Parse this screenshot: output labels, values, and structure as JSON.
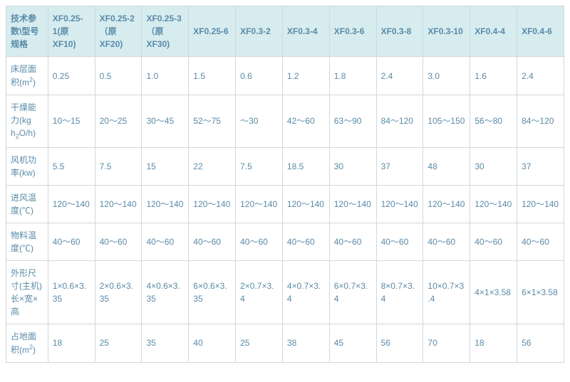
{
  "table": {
    "header_label": "技术参数\\型号规格",
    "columns": [
      "XF0.25-1(原XF10)",
      "XF0.25-2（原XF20)",
      "XF0.25-3（原XF30)",
      "XF0.25-6",
      "XF0.3-2",
      "XF0.3-4",
      "XF0.3-6",
      "XF0.3-8",
      "XF0.3-10",
      "XF0.4-4",
      "XF0.4-6"
    ],
    "rows": [
      {
        "label_html": "床层面积(m<span class=\"sup\">2</span>)",
        "cells": [
          "0.25",
          "0.5",
          "1.0",
          "1.5",
          "0.6",
          "1.2",
          "1.8",
          "2.4",
          "3.0",
          "1.6",
          "2.4"
        ]
      },
      {
        "label_html": "干燥能力(kg h<span class=\"sub\">2</span>O/h)",
        "cells": [
          "10～15",
          "20～25",
          "30～45",
          "52～75",
          "～30",
          "42～60",
          "63～90",
          "84～120",
          "105～150",
          "56～80",
          "84～120"
        ]
      },
      {
        "label_html": "风机功率(kw)",
        "cells": [
          "5.5",
          "7.5",
          "15",
          "22",
          "7.5",
          "18.5",
          "30",
          "37",
          "48",
          "30",
          "37"
        ]
      },
      {
        "label_html": "进风温度(℃)",
        "cells": [
          "120～140",
          "120～140",
          "120～140",
          "120～140",
          "120～140",
          "120～140",
          "120～140",
          "120～140",
          "120～140",
          "120～140",
          "120～140"
        ]
      },
      {
        "label_html": "物料温度(℃)",
        "cells": [
          "40～60",
          "40～60",
          "40～60",
          "40～60",
          "40～60",
          "40～60",
          "40～60",
          "40～60",
          "40～60",
          "40～60",
          "40～60"
        ]
      },
      {
        "label_html": "外形尺寸(主机)长×宽×高",
        "cells": [
          "1×0.6×3.35",
          "2×0.6×3.35",
          "4×0.6×3.35",
          "6×0.6×3.35",
          "2×0.7×3.4",
          "4×0.7×3.4",
          "6×0.7×3.4",
          "8×0.7×3.4",
          "10×0.7×3.4",
          "4×1×3.58",
          "6×1×3.58"
        ]
      },
      {
        "label_html": "占地面积(m<span class=\"sup\">2</span>)",
        "cells": [
          "18",
          "25",
          "35",
          "40",
          "25",
          "38",
          "45",
          "56",
          "70",
          "18",
          "56"
        ]
      }
    ]
  }
}
